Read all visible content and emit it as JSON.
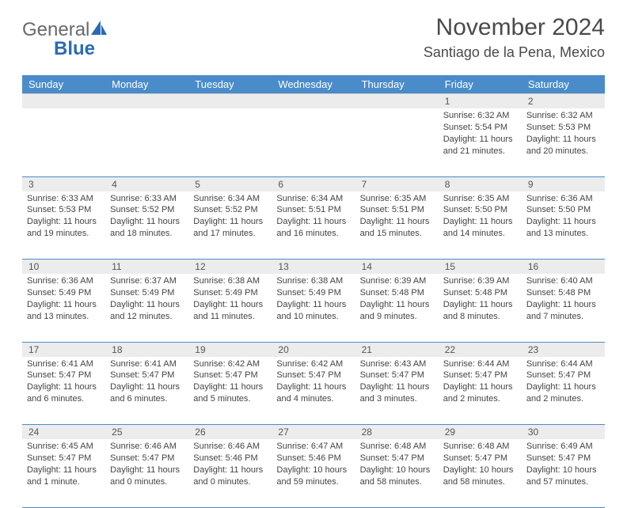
{
  "logo": {
    "word1": "General",
    "word2": "Blue"
  },
  "title": "November 2024",
  "location": "Santiago de la Pena, Mexico",
  "colors": {
    "header_bg": "#4a8cc9",
    "header_text": "#ffffff",
    "daynum_bg": "#ececec",
    "row_border": "#4a8cc9",
    "logo_gray": "#6a6a6a",
    "logo_blue": "#2a6bb5"
  },
  "dayHeaders": [
    "Sunday",
    "Monday",
    "Tuesday",
    "Wednesday",
    "Thursday",
    "Friday",
    "Saturday"
  ],
  "weeks": [
    [
      {
        "num": "",
        "sunrise": "",
        "sunset": "",
        "daylight": ""
      },
      {
        "num": "",
        "sunrise": "",
        "sunset": "",
        "daylight": ""
      },
      {
        "num": "",
        "sunrise": "",
        "sunset": "",
        "daylight": ""
      },
      {
        "num": "",
        "sunrise": "",
        "sunset": "",
        "daylight": ""
      },
      {
        "num": "",
        "sunrise": "",
        "sunset": "",
        "daylight": ""
      },
      {
        "num": "1",
        "sunrise": "Sunrise: 6:32 AM",
        "sunset": "Sunset: 5:54 PM",
        "daylight": "Daylight: 11 hours and 21 minutes."
      },
      {
        "num": "2",
        "sunrise": "Sunrise: 6:32 AM",
        "sunset": "Sunset: 5:53 PM",
        "daylight": "Daylight: 11 hours and 20 minutes."
      }
    ],
    [
      {
        "num": "3",
        "sunrise": "Sunrise: 6:33 AM",
        "sunset": "Sunset: 5:53 PM",
        "daylight": "Daylight: 11 hours and 19 minutes."
      },
      {
        "num": "4",
        "sunrise": "Sunrise: 6:33 AM",
        "sunset": "Sunset: 5:52 PM",
        "daylight": "Daylight: 11 hours and 18 minutes."
      },
      {
        "num": "5",
        "sunrise": "Sunrise: 6:34 AM",
        "sunset": "Sunset: 5:52 PM",
        "daylight": "Daylight: 11 hours and 17 minutes."
      },
      {
        "num": "6",
        "sunrise": "Sunrise: 6:34 AM",
        "sunset": "Sunset: 5:51 PM",
        "daylight": "Daylight: 11 hours and 16 minutes."
      },
      {
        "num": "7",
        "sunrise": "Sunrise: 6:35 AM",
        "sunset": "Sunset: 5:51 PM",
        "daylight": "Daylight: 11 hours and 15 minutes."
      },
      {
        "num": "8",
        "sunrise": "Sunrise: 6:35 AM",
        "sunset": "Sunset: 5:50 PM",
        "daylight": "Daylight: 11 hours and 14 minutes."
      },
      {
        "num": "9",
        "sunrise": "Sunrise: 6:36 AM",
        "sunset": "Sunset: 5:50 PM",
        "daylight": "Daylight: 11 hours and 13 minutes."
      }
    ],
    [
      {
        "num": "10",
        "sunrise": "Sunrise: 6:36 AM",
        "sunset": "Sunset: 5:49 PM",
        "daylight": "Daylight: 11 hours and 13 minutes."
      },
      {
        "num": "11",
        "sunrise": "Sunrise: 6:37 AM",
        "sunset": "Sunset: 5:49 PM",
        "daylight": "Daylight: 11 hours and 12 minutes."
      },
      {
        "num": "12",
        "sunrise": "Sunrise: 6:38 AM",
        "sunset": "Sunset: 5:49 PM",
        "daylight": "Daylight: 11 hours and 11 minutes."
      },
      {
        "num": "13",
        "sunrise": "Sunrise: 6:38 AM",
        "sunset": "Sunset: 5:49 PM",
        "daylight": "Daylight: 11 hours and 10 minutes."
      },
      {
        "num": "14",
        "sunrise": "Sunrise: 6:39 AM",
        "sunset": "Sunset: 5:48 PM",
        "daylight": "Daylight: 11 hours and 9 minutes."
      },
      {
        "num": "15",
        "sunrise": "Sunrise: 6:39 AM",
        "sunset": "Sunset: 5:48 PM",
        "daylight": "Daylight: 11 hours and 8 minutes."
      },
      {
        "num": "16",
        "sunrise": "Sunrise: 6:40 AM",
        "sunset": "Sunset: 5:48 PM",
        "daylight": "Daylight: 11 hours and 7 minutes."
      }
    ],
    [
      {
        "num": "17",
        "sunrise": "Sunrise: 6:41 AM",
        "sunset": "Sunset: 5:47 PM",
        "daylight": "Daylight: 11 hours and 6 minutes."
      },
      {
        "num": "18",
        "sunrise": "Sunrise: 6:41 AM",
        "sunset": "Sunset: 5:47 PM",
        "daylight": "Daylight: 11 hours and 6 minutes."
      },
      {
        "num": "19",
        "sunrise": "Sunrise: 6:42 AM",
        "sunset": "Sunset: 5:47 PM",
        "daylight": "Daylight: 11 hours and 5 minutes."
      },
      {
        "num": "20",
        "sunrise": "Sunrise: 6:42 AM",
        "sunset": "Sunset: 5:47 PM",
        "daylight": "Daylight: 11 hours and 4 minutes."
      },
      {
        "num": "21",
        "sunrise": "Sunrise: 6:43 AM",
        "sunset": "Sunset: 5:47 PM",
        "daylight": "Daylight: 11 hours and 3 minutes."
      },
      {
        "num": "22",
        "sunrise": "Sunrise: 6:44 AM",
        "sunset": "Sunset: 5:47 PM",
        "daylight": "Daylight: 11 hours and 2 minutes."
      },
      {
        "num": "23",
        "sunrise": "Sunrise: 6:44 AM",
        "sunset": "Sunset: 5:47 PM",
        "daylight": "Daylight: 11 hours and 2 minutes."
      }
    ],
    [
      {
        "num": "24",
        "sunrise": "Sunrise: 6:45 AM",
        "sunset": "Sunset: 5:47 PM",
        "daylight": "Daylight: 11 hours and 1 minute."
      },
      {
        "num": "25",
        "sunrise": "Sunrise: 6:46 AM",
        "sunset": "Sunset: 5:47 PM",
        "daylight": "Daylight: 11 hours and 0 minutes."
      },
      {
        "num": "26",
        "sunrise": "Sunrise: 6:46 AM",
        "sunset": "Sunset: 5:46 PM",
        "daylight": "Daylight: 11 hours and 0 minutes."
      },
      {
        "num": "27",
        "sunrise": "Sunrise: 6:47 AM",
        "sunset": "Sunset: 5:46 PM",
        "daylight": "Daylight: 10 hours and 59 minutes."
      },
      {
        "num": "28",
        "sunrise": "Sunrise: 6:48 AM",
        "sunset": "Sunset: 5:47 PM",
        "daylight": "Daylight: 10 hours and 58 minutes."
      },
      {
        "num": "29",
        "sunrise": "Sunrise: 6:48 AM",
        "sunset": "Sunset: 5:47 PM",
        "daylight": "Daylight: 10 hours and 58 minutes."
      },
      {
        "num": "30",
        "sunrise": "Sunrise: 6:49 AM",
        "sunset": "Sunset: 5:47 PM",
        "daylight": "Daylight: 10 hours and 57 minutes."
      }
    ]
  ]
}
